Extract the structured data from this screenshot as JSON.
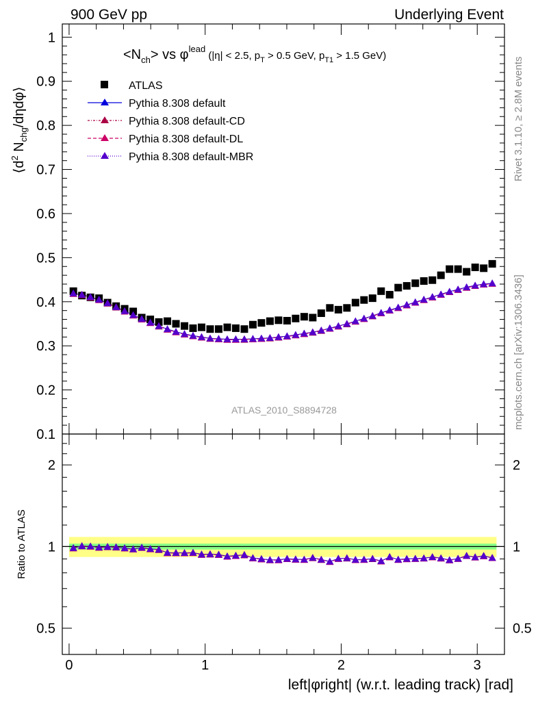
{
  "header": {
    "left": "900 GeV pp",
    "right": "Underlying Event"
  },
  "side_labels": {
    "rivet": "Rivet 3.1.10, ≥ 2.8M events",
    "mcplots": "mcplots.cern.ch [arXiv:1306.3436]"
  },
  "plot": {
    "title_main": "<N",
    "title_sub": "ch",
    "title_mid": "> vs φ",
    "title_sup": "lead",
    "title_cuts_a": " (|η| < 2.5, p",
    "title_cuts_sub1": "T",
    "title_cuts_b": " > 0.5 GeV, p",
    "title_cuts_sub2": "T1",
    "title_cuts_c": " > 1.5 GeV)",
    "ylabel_a": "⟨d",
    "ylabel_sup": "2",
    "ylabel_b": " N",
    "ylabel_sub": "chg",
    "ylabel_c": "/dηdφ⟩",
    "watermark": "ATLAS_2010_S8894728",
    "ratio_ylabel": "Ratio to ATLAS",
    "xlabel": "left|φright| (w.r.t. leading track) [rad]"
  },
  "legend": {
    "atlas": "ATLAS",
    "default": "Pythia 8.308 default",
    "cd": "Pythia 8.308 default-CD",
    "dl": "Pythia 8.308 default-DL",
    "mbr": "Pythia 8.308 default-MBR"
  },
  "colors": {
    "atlas": "#000000",
    "default": "#0000dd",
    "cd": "#aa0044",
    "dl": "#cc0066",
    "mbr": "#5500cc",
    "band_yellow": "#ffff88",
    "band_green": "#88ff88"
  },
  "chart_data": {
    "type": "scatter",
    "main": {
      "xlim": [
        -0.05,
        3.2
      ],
      "ylim": [
        0.1,
        1.03
      ],
      "yticks": [
        0.1,
        0.2,
        0.3,
        0.4,
        0.5,
        0.6,
        0.7,
        0.8,
        0.9,
        1
      ],
      "ytick_labels": [
        "0.1",
        "0.2",
        "0.3",
        "0.4",
        "0.5",
        "0.6",
        "0.7",
        "0.8",
        "0.9",
        "1"
      ]
    },
    "ratio": {
      "ylim": [
        0.4,
        2.6
      ],
      "log_scale": true,
      "yticks": [
        0.5,
        1,
        2
      ],
      "ytick_labels": [
        "0.5",
        "1",
        "2"
      ],
      "band_green_halfwidth": 0.025,
      "band_yellow_halfwidth": 0.085
    },
    "xticks": [
      0,
      1,
      2,
      3
    ],
    "xtick_labels": [
      "0",
      "1",
      "2",
      "3"
    ],
    "x": [
      0.0314,
      0.0942,
      0.1571,
      0.2199,
      0.2827,
      0.3456,
      0.4084,
      0.4712,
      0.5341,
      0.5969,
      0.6597,
      0.7226,
      0.7854,
      0.8482,
      0.911,
      0.9739,
      1.0367,
      1.0996,
      1.1624,
      1.2252,
      1.2881,
      1.3509,
      1.4137,
      1.4765,
      1.5394,
      1.6022,
      1.665,
      1.7279,
      1.7907,
      1.8535,
      1.9164,
      1.9792,
      2.042,
      2.1049,
      2.1677,
      2.2305,
      2.2934,
      2.3562,
      2.419,
      2.4819,
      2.5447,
      2.6075,
      2.6704,
      2.7332,
      2.796,
      2.8588,
      2.9217,
      2.9845,
      3.0473,
      3.1102
    ],
    "series": [
      {
        "name": "ATLAS",
        "marker": "square",
        "values": [
          0.424,
          0.414,
          0.41,
          0.408,
          0.398,
          0.39,
          0.384,
          0.378,
          0.364,
          0.36,
          0.354,
          0.356,
          0.35,
          0.345,
          0.34,
          0.342,
          0.338,
          0.338,
          0.342,
          0.34,
          0.338,
          0.348,
          0.352,
          0.356,
          0.358,
          0.357,
          0.362,
          0.366,
          0.364,
          0.374,
          0.386,
          0.382,
          0.386,
          0.398,
          0.404,
          0.408,
          0.424,
          0.416,
          0.432,
          0.436,
          0.442,
          0.447,
          0.449,
          0.46,
          0.474,
          0.474,
          0.468,
          0.478,
          0.476,
          0.486
        ]
      },
      {
        "name": "Pythia 8.308 default",
        "marker": "triangle",
        "values": [
          0.419,
          0.416,
          0.411,
          0.405,
          0.397,
          0.388,
          0.379,
          0.37,
          0.361,
          0.353,
          0.345,
          0.338,
          0.332,
          0.327,
          0.323,
          0.32,
          0.317,
          0.316,
          0.315,
          0.315,
          0.315,
          0.316,
          0.317,
          0.318,
          0.32,
          0.322,
          0.325,
          0.328,
          0.331,
          0.335,
          0.34,
          0.345,
          0.35,
          0.356,
          0.362,
          0.368,
          0.375,
          0.381,
          0.387,
          0.393,
          0.399,
          0.405,
          0.411,
          0.417,
          0.423,
          0.428,
          0.433,
          0.437,
          0.44,
          0.442
        ]
      },
      {
        "name": "Pythia 8.308 default-CD",
        "marker": "triangle",
        "values": [
          0.418,
          0.415,
          0.41,
          0.404,
          0.396,
          0.387,
          0.378,
          0.369,
          0.36,
          0.352,
          0.344,
          0.337,
          0.331,
          0.326,
          0.322,
          0.319,
          0.316,
          0.315,
          0.314,
          0.314,
          0.314,
          0.315,
          0.316,
          0.317,
          0.319,
          0.321,
          0.324,
          0.327,
          0.33,
          0.334,
          0.339,
          0.344,
          0.349,
          0.355,
          0.361,
          0.367,
          0.374,
          0.38,
          0.386,
          0.392,
          0.398,
          0.404,
          0.41,
          0.416,
          0.422,
          0.427,
          0.432,
          0.436,
          0.439,
          0.441
        ]
      },
      {
        "name": "Pythia 8.308 default-DL",
        "marker": "triangle",
        "values": [
          0.418,
          0.416,
          0.41,
          0.404,
          0.397,
          0.388,
          0.378,
          0.369,
          0.36,
          0.352,
          0.345,
          0.337,
          0.331,
          0.326,
          0.322,
          0.319,
          0.317,
          0.315,
          0.314,
          0.314,
          0.315,
          0.315,
          0.316,
          0.318,
          0.319,
          0.321,
          0.324,
          0.327,
          0.331,
          0.335,
          0.339,
          0.344,
          0.35,
          0.355,
          0.361,
          0.368,
          0.374,
          0.38,
          0.386,
          0.392,
          0.398,
          0.404,
          0.41,
          0.416,
          0.422,
          0.427,
          0.432,
          0.436,
          0.439,
          0.441
        ]
      },
      {
        "name": "Pythia 8.308 default-MBR",
        "marker": "triangle",
        "values": [
          0.419,
          0.416,
          0.411,
          0.405,
          0.397,
          0.388,
          0.379,
          0.37,
          0.361,
          0.353,
          0.345,
          0.338,
          0.332,
          0.327,
          0.323,
          0.32,
          0.317,
          0.316,
          0.315,
          0.315,
          0.315,
          0.316,
          0.317,
          0.318,
          0.32,
          0.322,
          0.325,
          0.328,
          0.331,
          0.335,
          0.34,
          0.345,
          0.35,
          0.356,
          0.362,
          0.368,
          0.375,
          0.381,
          0.387,
          0.393,
          0.399,
          0.405,
          0.411,
          0.417,
          0.423,
          0.428,
          0.433,
          0.437,
          0.44,
          0.442
        ]
      }
    ]
  }
}
